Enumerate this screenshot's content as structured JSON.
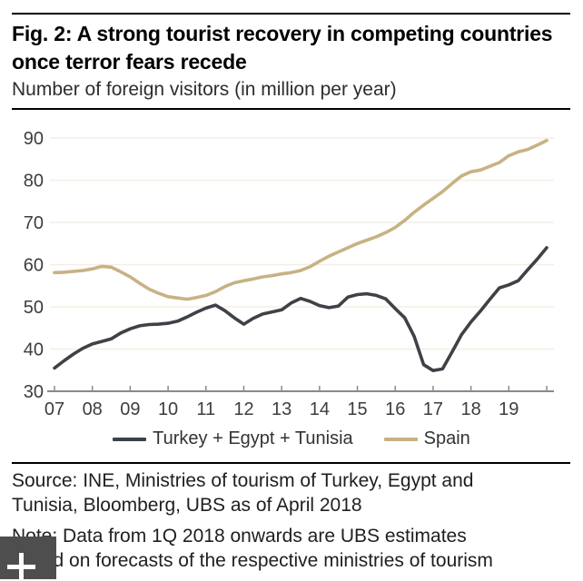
{
  "figure": {
    "title": "Fig. 2: A strong tourist recovery in competing countries once terror fears recede",
    "subtitle": "Number of foreign visitors (in million per year)",
    "source_lines": [
      "Source: INE, Ministries of tourism of Turkey, Egypt and",
      "Tunisia, Bloomberg, UBS as of April 2018"
    ],
    "note_lines": [
      "Note: Data from 1Q 2018 onwards are UBS estimates",
      "based on forecasts of the respective ministries of tourism"
    ]
  },
  "cursor_overlay": {
    "icon": "plus-crosshair-icon",
    "background": "#4e4e4e",
    "glyph_color": "#ffffff"
  },
  "chart_data": {
    "type": "line",
    "title": "Fig. 2: A strong tourist recovery in competing countries once terror fears recede",
    "subtitle": "Number of foreign visitors (in million per year)",
    "xlabel": "",
    "ylabel": "",
    "xlim": [
      2007,
      2020
    ],
    "ylim": [
      30,
      90
    ],
    "yticks": [
      30,
      40,
      50,
      60,
      70,
      80,
      90
    ],
    "xtick_years": [
      2007,
      2008,
      2009,
      2010,
      2011,
      2012,
      2013,
      2014,
      2015,
      2016,
      2017,
      2018,
      2019,
      2020
    ],
    "xtick_labels": [
      "07",
      "08",
      "09",
      "10",
      "11",
      "12",
      "13",
      "14",
      "15",
      "16",
      "17",
      "18",
      "19",
      ""
    ],
    "grid": "horizontal",
    "legend_position": "bottom",
    "colors": {
      "grid": "#f3efe5",
      "axis": "#8a8a8a",
      "tick_text": "#3d3d3d"
    },
    "x": [
      2007,
      2007.25,
      2007.5,
      2007.75,
      2008,
      2008.25,
      2008.5,
      2008.75,
      2009,
      2009.25,
      2009.5,
      2009.75,
      2010,
      2010.25,
      2010.5,
      2010.75,
      2011,
      2011.25,
      2011.5,
      2011.75,
      2012,
      2012.25,
      2012.5,
      2012.75,
      2013,
      2013.25,
      2013.5,
      2013.75,
      2014,
      2014.25,
      2014.5,
      2014.75,
      2015,
      2015.25,
      2015.5,
      2015.75,
      2016,
      2016.25,
      2016.5,
      2016.75,
      2017,
      2017.25,
      2017.5,
      2017.75,
      2018,
      2018.25,
      2018.5,
      2018.75,
      2019,
      2019.25,
      2019.5,
      2019.75,
      2020
    ],
    "series": [
      {
        "name": "Turkey + Egypt + Tunisia",
        "color": "#3e4247",
        "values": [
          35.5,
          37.2,
          38.8,
          40.2,
          41.2,
          41.8,
          42.4,
          43.8,
          44.8,
          45.5,
          45.8,
          45.9,
          46.1,
          46.6,
          47.6,
          48.7,
          49.7,
          50.4,
          49.1,
          47.4,
          45.9,
          47.3,
          48.3,
          48.8,
          49.3,
          50.9,
          52.0,
          51.3,
          50.3,
          49.8,
          50.2,
          52.3,
          52.9,
          53.1,
          52.7,
          51.9,
          49.6,
          47.4,
          43.0,
          36.3,
          34.9,
          35.3,
          39.3,
          43.4,
          46.4,
          49.0,
          51.8,
          54.5,
          55.2,
          56.2,
          58.8,
          61.3,
          64.0
        ]
      },
      {
        "name": "Spain",
        "color": "#c8b284",
        "values": [
          58.1,
          58.2,
          58.4,
          58.6,
          59.0,
          59.6,
          59.4,
          58.3,
          57.1,
          55.6,
          54.2,
          53.2,
          52.4,
          52.1,
          51.8,
          52.2,
          52.7,
          53.6,
          54.8,
          55.7,
          56.2,
          56.6,
          57.1,
          57.4,
          57.8,
          58.1,
          58.6,
          59.5,
          60.8,
          62.0,
          63.0,
          64.0,
          65.0,
          65.8,
          66.6,
          67.6,
          68.8,
          70.5,
          72.4,
          74.1,
          75.7,
          77.3,
          79.2,
          81.0,
          82.0,
          82.4,
          83.3,
          84.2,
          85.8,
          86.7,
          87.3,
          88.3,
          89.4
        ]
      }
    ]
  }
}
